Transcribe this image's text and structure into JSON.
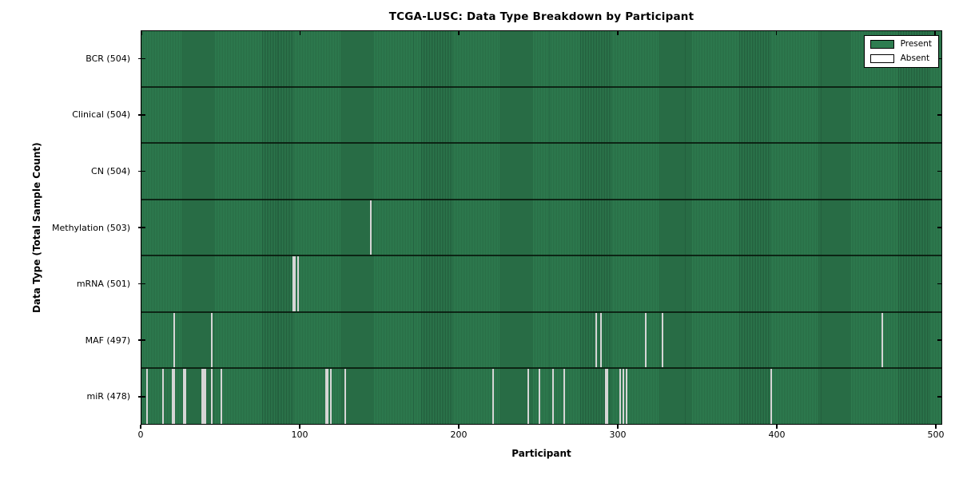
{
  "chart_data": {
    "type": "heatmap",
    "title": "TCGA-LUSC: Data Type Breakdown by Participant",
    "xlabel": "Participant",
    "ylabel": "Data Type (Total Sample Count)",
    "x_ticks": [
      0,
      100,
      200,
      300,
      400,
      500
    ],
    "n_participants": 504,
    "grid": false,
    "legend_position": "upper right",
    "legend_labels": [
      "Present",
      "Absent"
    ],
    "colors": {
      "present": "#2e7d50",
      "absent": "#e4e4e4",
      "cell_edge": "#0a1f12"
    },
    "rows": [
      {
        "data_type": "BCR",
        "label": "BCR (504)",
        "total_samples": 504,
        "absent_count": 0,
        "absent_participants": []
      },
      {
        "data_type": "Clinical",
        "label": "Clinical (504)",
        "total_samples": 504,
        "absent_count": 0,
        "absent_participants": []
      },
      {
        "data_type": "CN",
        "label": "CN (504)",
        "total_samples": 504,
        "absent_count": 0,
        "absent_participants": []
      },
      {
        "data_type": "Methylation",
        "label": "Methylation (503)",
        "total_samples": 503,
        "absent_count": 1,
        "absent_participants": [
          144
        ]
      },
      {
        "data_type": "mRNA",
        "label": "mRNA (501)",
        "total_samples": 501,
        "absent_count": 3,
        "absent_participants": [
          95,
          96,
          98
        ]
      },
      {
        "data_type": "MAF",
        "label": "MAF (497)",
        "total_samples": 497,
        "absent_count": 7,
        "absent_participants": [
          20,
          44,
          286,
          289,
          317,
          328,
          466
        ]
      },
      {
        "data_type": "miR",
        "label": "miR (478)",
        "total_samples": 478,
        "absent_count": 26,
        "absent_participants": [
          3,
          13,
          19,
          20,
          26,
          27,
          38,
          39,
          40,
          44,
          50,
          116,
          117,
          119,
          128,
          221,
          243,
          250,
          259,
          266,
          292,
          293,
          301,
          303,
          305,
          396
        ]
      }
    ]
  }
}
